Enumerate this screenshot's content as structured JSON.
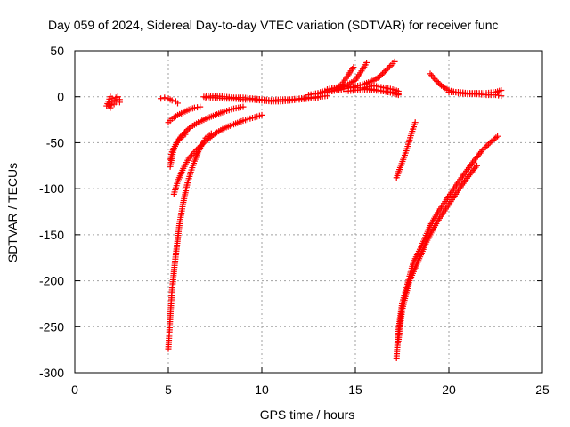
{
  "chart_data": {
    "type": "scatter",
    "title": "Day 059 of 2024, Sidereal Day-to-day VTEC variation (SDTVAR) for receiver func",
    "xlabel": "GPS time / hours",
    "ylabel": "SDTVAR / TECUs",
    "xlim": [
      0,
      25
    ],
    "ylim": [
      -300,
      50
    ],
    "xticks": [
      0,
      5,
      10,
      15,
      20,
      25
    ],
    "yticks": [
      -300,
      -250,
      -200,
      -150,
      -100,
      -50,
      0,
      50
    ],
    "grid": true,
    "marker": "plus",
    "color": "#ff0000",
    "segments": [
      {
        "points": [
          [
            1.7,
            -10
          ],
          [
            1.8,
            -5
          ],
          [
            1.9,
            0
          ],
          [
            2.0,
            -2
          ],
          [
            2.1,
            -4
          ],
          [
            2.2,
            -1
          ],
          [
            2.3,
            0
          ],
          [
            2.4,
            -3
          ]
        ]
      },
      {
        "points": [
          [
            1.8,
            -8
          ],
          [
            1.9,
            -12
          ],
          [
            2.0,
            -6
          ],
          [
            2.1,
            -8
          ],
          [
            2.2,
            -6
          ],
          [
            2.3,
            -3
          ],
          [
            2.4,
            -6
          ]
        ]
      },
      {
        "points": [
          [
            4.6,
            -2
          ],
          [
            4.8,
            -1
          ],
          [
            5.0,
            -2
          ],
          [
            5.2,
            -4
          ],
          [
            5.4,
            -5
          ],
          [
            5.5,
            -7
          ]
        ]
      },
      {
        "points": [
          [
            5.0,
            -28
          ],
          [
            5.2,
            -24
          ],
          [
            5.5,
            -20
          ],
          [
            5.8,
            -17
          ],
          [
            6.1,
            -14
          ],
          [
            6.4,
            -12
          ],
          [
            6.7,
            -11
          ]
        ]
      },
      {
        "points": [
          [
            5.1,
            -76
          ],
          [
            5.2,
            -65
          ],
          [
            5.3,
            -56
          ],
          [
            5.5,
            -48
          ],
          [
            5.8,
            -40
          ],
          [
            6.2,
            -33
          ],
          [
            6.6,
            -28
          ],
          [
            7.0,
            -24
          ],
          [
            7.5,
            -20
          ],
          [
            8.0,
            -16
          ],
          [
            8.5,
            -13
          ],
          [
            9.0,
            -11
          ]
        ]
      },
      {
        "points": [
          [
            5.1,
            -68
          ],
          [
            5.2,
            -60
          ],
          [
            5.4,
            -52
          ],
          [
            5.6,
            -46
          ],
          [
            5.9,
            -41
          ]
        ]
      },
      {
        "points": [
          [
            5.3,
            -106
          ],
          [
            5.5,
            -92
          ],
          [
            5.8,
            -78
          ],
          [
            6.1,
            -67
          ],
          [
            6.5,
            -58
          ],
          [
            7.0,
            -48
          ],
          [
            7.5,
            -40
          ],
          [
            8.0,
            -34
          ],
          [
            8.5,
            -30
          ],
          [
            9.0,
            -26
          ],
          [
            9.5,
            -23
          ],
          [
            10.0,
            -20
          ]
        ]
      },
      {
        "points": [
          [
            5.0,
            -274
          ],
          [
            5.05,
            -258
          ],
          [
            5.1,
            -240
          ],
          [
            5.15,
            -225
          ],
          [
            5.2,
            -210
          ],
          [
            5.3,
            -190
          ],
          [
            5.4,
            -172
          ],
          [
            5.5,
            -155
          ],
          [
            5.6,
            -138
          ],
          [
            5.8,
            -115
          ],
          [
            6.0,
            -96
          ],
          [
            6.2,
            -82
          ],
          [
            6.4,
            -70
          ],
          [
            6.6,
            -60
          ],
          [
            6.8,
            -52
          ],
          [
            7.0,
            -45
          ],
          [
            7.3,
            -40
          ]
        ]
      },
      {
        "points": [
          [
            6.9,
            0
          ],
          [
            7.5,
            1
          ],
          [
            8.0,
            0
          ],
          [
            8.5,
            -1
          ],
          [
            9.0,
            -1
          ],
          [
            9.5,
            -2
          ],
          [
            10.0,
            -3
          ],
          [
            10.5,
            -4
          ],
          [
            11.0,
            -3
          ],
          [
            11.5,
            -3
          ],
          [
            12.0,
            -2
          ],
          [
            12.5,
            -1
          ],
          [
            13.0,
            0
          ],
          [
            13.5,
            1
          ]
        ]
      },
      {
        "points": [
          [
            7.0,
            -1
          ],
          [
            7.5,
            -1
          ],
          [
            8.0,
            -2
          ],
          [
            8.5,
            -2
          ],
          [
            9.0,
            -3
          ],
          [
            9.5,
            -3
          ],
          [
            10.0,
            -4
          ],
          [
            10.5,
            -5
          ],
          [
            11.0,
            -5
          ],
          [
            11.5,
            -4
          ],
          [
            12.0,
            -3
          ],
          [
            12.5,
            -2
          ],
          [
            13.0,
            -1
          ]
        ]
      },
      {
        "points": [
          [
            12.5,
            2
          ],
          [
            13.0,
            4
          ],
          [
            13.5,
            7
          ],
          [
            14.0,
            10
          ],
          [
            14.3,
            14
          ],
          [
            14.5,
            20
          ],
          [
            14.7,
            26
          ],
          [
            14.9,
            32
          ]
        ]
      },
      {
        "points": [
          [
            13.0,
            3
          ],
          [
            13.5,
            5
          ],
          [
            14.0,
            8
          ],
          [
            14.5,
            12
          ],
          [
            15.0,
            18
          ],
          [
            15.2,
            24
          ],
          [
            15.4,
            30
          ],
          [
            15.6,
            37
          ]
        ]
      },
      {
        "points": [
          [
            13.5,
            5
          ],
          [
            14.0,
            7
          ],
          [
            14.5,
            9
          ],
          [
            15.0,
            11
          ],
          [
            15.5,
            14
          ],
          [
            16.0,
            18
          ],
          [
            16.3,
            22
          ],
          [
            16.6,
            28
          ],
          [
            16.9,
            34
          ],
          [
            17.1,
            38
          ]
        ]
      },
      {
        "points": [
          [
            13.5,
            8
          ],
          [
            14.0,
            10
          ],
          [
            14.5,
            11
          ],
          [
            15.0,
            10
          ],
          [
            15.5,
            9
          ],
          [
            16.0,
            8
          ],
          [
            16.5,
            6
          ],
          [
            17.0,
            4
          ],
          [
            17.3,
            2
          ]
        ]
      },
      {
        "points": [
          [
            14.5,
            6
          ],
          [
            15.0,
            7
          ],
          [
            15.5,
            8
          ],
          [
            16.0,
            7
          ],
          [
            16.5,
            6
          ],
          [
            17.0,
            5
          ],
          [
            17.3,
            3
          ]
        ]
      },
      {
        "points": [
          [
            15.5,
            10
          ],
          [
            16.0,
            12
          ],
          [
            16.5,
            10
          ],
          [
            17.0,
            8
          ],
          [
            17.3,
            6
          ]
        ]
      },
      {
        "points": [
          [
            17.2,
            -88
          ],
          [
            17.4,
            -77
          ],
          [
            17.6,
            -66
          ],
          [
            17.8,
            -54
          ],
          [
            18.0,
            -40
          ],
          [
            18.2,
            -28
          ]
        ]
      },
      {
        "points": [
          [
            17.2,
            -284
          ],
          [
            17.25,
            -270
          ],
          [
            17.3,
            -255
          ],
          [
            17.4,
            -240
          ],
          [
            17.5,
            -225
          ],
          [
            17.7,
            -210
          ],
          [
            17.9,
            -195
          ],
          [
            18.1,
            -180
          ],
          [
            18.4,
            -168
          ],
          [
            18.7,
            -155
          ],
          [
            19.0,
            -140
          ],
          [
            19.4,
            -126
          ],
          [
            19.8,
            -114
          ],
          [
            20.2,
            -102
          ],
          [
            20.6,
            -90
          ],
          [
            21.0,
            -79
          ],
          [
            21.4,
            -68
          ],
          [
            21.8,
            -58
          ],
          [
            22.2,
            -50
          ],
          [
            22.6,
            -43
          ]
        ]
      },
      {
        "points": [
          [
            17.3,
            -266
          ],
          [
            17.4,
            -248
          ],
          [
            17.5,
            -232
          ],
          [
            17.7,
            -215
          ],
          [
            17.9,
            -200
          ],
          [
            18.2,
            -186
          ],
          [
            18.5,
            -172
          ],
          [
            18.8,
            -158
          ],
          [
            19.1,
            -146
          ],
          [
            19.5,
            -132
          ],
          [
            19.9,
            -120
          ],
          [
            20.3,
            -108
          ],
          [
            20.7,
            -96
          ],
          [
            21.1,
            -85
          ],
          [
            21.5,
            -75
          ]
        ]
      },
      {
        "points": [
          [
            19.0,
            25
          ],
          [
            19.3,
            18
          ],
          [
            19.6,
            12
          ],
          [
            20.0,
            7
          ],
          [
            20.5,
            4
          ],
          [
            21.0,
            3
          ],
          [
            21.5,
            3
          ],
          [
            22.0,
            2
          ],
          [
            22.5,
            2
          ],
          [
            22.8,
            1
          ]
        ]
      },
      {
        "points": [
          [
            20.0,
            5
          ],
          [
            20.5,
            5
          ],
          [
            21.0,
            4
          ],
          [
            21.5,
            4
          ],
          [
            22.0,
            4
          ],
          [
            22.5,
            5
          ],
          [
            22.8,
            7
          ]
        ]
      }
    ]
  }
}
